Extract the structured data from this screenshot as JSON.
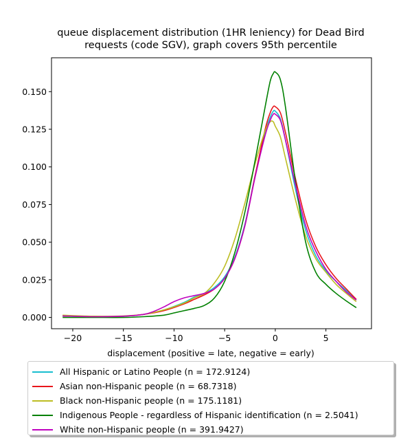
{
  "chart_data": {
    "type": "line",
    "title_line1": "queue displacement distribution (1HR leniency) for Dead Bird",
    "title_line2": "requests (code SGV), graph covers 95th percentile",
    "xlabel": "displacement (positive = late, negative = early)",
    "ylabel": "",
    "xlim": [
      -22.1,
      9.5
    ],
    "ylim": [
      -0.0075,
      0.1725
    ],
    "x_ticks": [
      -20,
      -15,
      -10,
      -5,
      0,
      5
    ],
    "x_tick_labels": [
      "−20",
      "−15",
      "−10",
      "−5",
      "0",
      "5"
    ],
    "y_ticks": [
      0.0,
      0.025,
      0.05,
      0.075,
      0.1,
      0.125,
      0.15
    ],
    "y_tick_labels": [
      "0.000",
      "0.025",
      "0.050",
      "0.075",
      "0.100",
      "0.125",
      "0.150"
    ],
    "grid": false,
    "legend_position": "below",
    "series": [
      {
        "name": "All Hispanic or Latino People (n = 172.9124)",
        "color": "#17becf",
        "points": [
          [
            -21,
            0.001
          ],
          [
            -18,
            0.0005
          ],
          [
            -15,
            0.0008
          ],
          [
            -13,
            0.002
          ],
          [
            -11,
            0.005
          ],
          [
            -9,
            0.01
          ],
          [
            -8,
            0.0135
          ],
          [
            -7,
            0.016
          ],
          [
            -6,
            0.02
          ],
          [
            -5,
            0.027
          ],
          [
            -4,
            0.04
          ],
          [
            -3,
            0.062
          ],
          [
            -2,
            0.094
          ],
          [
            -1,
            0.123
          ],
          [
            -0.5,
            0.133
          ],
          [
            -0.2,
            0.137
          ],
          [
            0,
            0.137
          ],
          [
            0.5,
            0.132
          ],
          [
            1,
            0.118
          ],
          [
            2,
            0.085
          ],
          [
            3,
            0.058
          ],
          [
            4,
            0.041
          ],
          [
            5,
            0.031
          ],
          [
            6,
            0.024
          ],
          [
            7,
            0.018
          ],
          [
            8,
            0.012
          ]
        ]
      },
      {
        "name": "Asian non-Hispanic people (n = 68.7318)",
        "color": "#e8151b",
        "points": [
          [
            -21,
            0.001
          ],
          [
            -18,
            0.0005
          ],
          [
            -15,
            0.0008
          ],
          [
            -13,
            0.002
          ],
          [
            -11,
            0.0045
          ],
          [
            -9,
            0.009
          ],
          [
            -8,
            0.012
          ],
          [
            -7,
            0.015
          ],
          [
            -6,
            0.019
          ],
          [
            -5,
            0.026
          ],
          [
            -4,
            0.039
          ],
          [
            -3,
            0.061
          ],
          [
            -2,
            0.094
          ],
          [
            -1,
            0.125
          ],
          [
            -0.5,
            0.136
          ],
          [
            -0.2,
            0.14
          ],
          [
            0,
            0.14
          ],
          [
            0.5,
            0.136
          ],
          [
            1,
            0.123
          ],
          [
            2,
            0.092
          ],
          [
            3,
            0.065
          ],
          [
            4,
            0.047
          ],
          [
            5,
            0.035
          ],
          [
            6,
            0.026
          ],
          [
            7,
            0.019
          ],
          [
            8,
            0.012
          ]
        ]
      },
      {
        "name": "Black non-Hispanic people (n = 175.1181)",
        "color": "#bcbd22",
        "points": [
          [
            -21,
            0.0015
          ],
          [
            -18,
            0.0008
          ],
          [
            -15,
            0.001
          ],
          [
            -13,
            0.002
          ],
          [
            -11,
            0.005
          ],
          [
            -9,
            0.0095
          ],
          [
            -8,
            0.013
          ],
          [
            -7,
            0.016
          ],
          [
            -6,
            0.023
          ],
          [
            -5,
            0.034
          ],
          [
            -4,
            0.052
          ],
          [
            -3,
            0.076
          ],
          [
            -2,
            0.102
          ],
          [
            -1,
            0.124
          ],
          [
            -0.5,
            0.13
          ],
          [
            -0.2,
            0.13
          ],
          [
            0,
            0.127
          ],
          [
            0.5,
            0.12
          ],
          [
            1,
            0.106
          ],
          [
            2,
            0.078
          ],
          [
            3,
            0.054
          ],
          [
            4,
            0.039
          ],
          [
            5,
            0.03
          ],
          [
            6,
            0.022
          ],
          [
            7,
            0.016
          ],
          [
            8,
            0.0105
          ]
        ]
      },
      {
        "name": "Indigenous People - regardless of Hispanic identification (n = 2.5041)",
        "color": "#008000",
        "points": [
          [
            -21,
            0.0
          ],
          [
            -18,
            0.0
          ],
          [
            -15,
            0.0
          ],
          [
            -13,
            0.0005
          ],
          [
            -11,
            0.0015
          ],
          [
            -10,
            0.003
          ],
          [
            -9,
            0.0045
          ],
          [
            -8,
            0.006
          ],
          [
            -7,
            0.008
          ],
          [
            -6,
            0.013
          ],
          [
            -5,
            0.024
          ],
          [
            -4,
            0.043
          ],
          [
            -3,
            0.07
          ],
          [
            -2,
            0.104
          ],
          [
            -1,
            0.14
          ],
          [
            -0.5,
            0.157
          ],
          [
            -0.2,
            0.162
          ],
          [
            0,
            0.163
          ],
          [
            0.5,
            0.158
          ],
          [
            1,
            0.14
          ],
          [
            2,
            0.09
          ],
          [
            3,
            0.05
          ],
          [
            4,
            0.03
          ],
          [
            5,
            0.022
          ],
          [
            6,
            0.016
          ],
          [
            7,
            0.011
          ],
          [
            8,
            0.0065
          ]
        ]
      },
      {
        "name": "White non-Hispanic people (n = 391.9427)",
        "color": "#bf00bf",
        "points": [
          [
            -21,
            0.001
          ],
          [
            -18,
            0.0005
          ],
          [
            -15,
            0.0008
          ],
          [
            -13,
            0.002
          ],
          [
            -12,
            0.004
          ],
          [
            -11,
            0.007
          ],
          [
            -10,
            0.0105
          ],
          [
            -9,
            0.013
          ],
          [
            -8,
            0.0145
          ],
          [
            -7,
            0.016
          ],
          [
            -6,
            0.019
          ],
          [
            -5,
            0.026
          ],
          [
            -4,
            0.039
          ],
          [
            -3,
            0.061
          ],
          [
            -2,
            0.093
          ],
          [
            -1,
            0.121
          ],
          [
            -0.5,
            0.131
          ],
          [
            -0.2,
            0.135
          ],
          [
            0,
            0.135
          ],
          [
            0.5,
            0.131
          ],
          [
            1,
            0.118
          ],
          [
            2,
            0.088
          ],
          [
            3,
            0.061
          ],
          [
            4,
            0.044
          ],
          [
            5,
            0.032
          ],
          [
            6,
            0.024
          ],
          [
            7,
            0.017
          ],
          [
            8,
            0.0115
          ]
        ]
      }
    ]
  }
}
